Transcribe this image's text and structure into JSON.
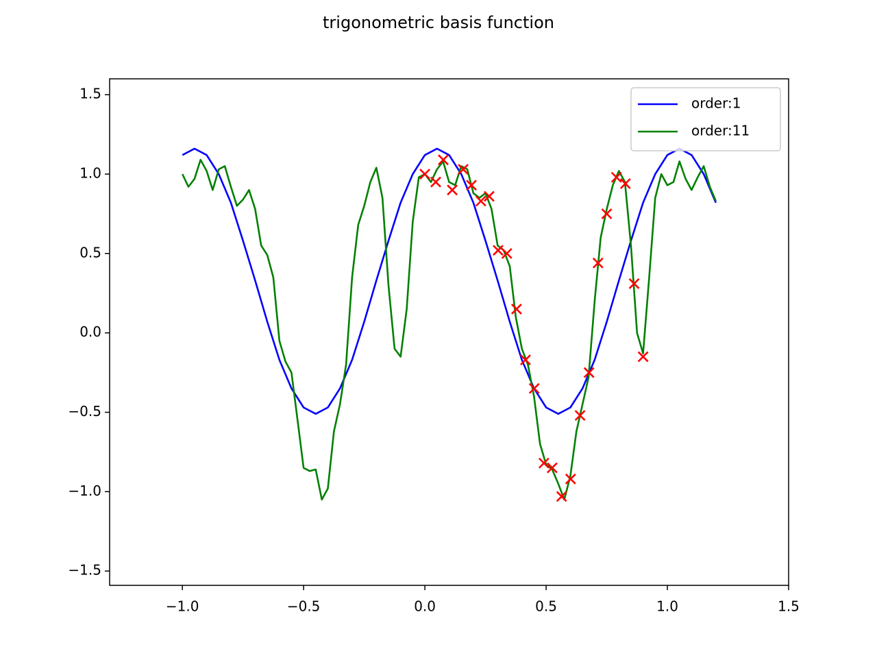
{
  "chart_data": {
    "type": "line",
    "title": "trigonometric basis function",
    "xlim": [
      -1.3,
      1.5
    ],
    "ylim": [
      -1.59,
      1.6
    ],
    "xticks": [
      {
        "value": -1,
        "label": "−1.0"
      },
      {
        "value": -0.5,
        "label": "−0.5"
      },
      {
        "value": 0,
        "label": "0.0"
      },
      0.5,
      {
        "value": 1,
        "label": "1.0"
      },
      1.5
    ],
    "yticks": [
      {
        "value": -1.5,
        "label": "−1.5"
      },
      {
        "value": -1,
        "label": "−1.0"
      },
      {
        "value": -0.5,
        "label": "−0.5"
      },
      {
        "value": 0,
        "label": "0.0"
      },
      0.5,
      {
        "value": 1,
        "label": "1.0"
      },
      1.5
    ],
    "grid": false,
    "legend": "upper-right",
    "series": [
      {
        "name": "order:1",
        "color": "#0000ff",
        "x": [
          -1.0,
          -0.95,
          -0.9,
          -0.85,
          -0.8,
          -0.75,
          -0.7,
          -0.65,
          -0.6,
          -0.55,
          -0.5,
          -0.45,
          -0.4,
          -0.35,
          -0.3,
          -0.25,
          -0.2,
          -0.15,
          -0.1,
          -0.05,
          0.0,
          0.05,
          0.1,
          0.15,
          0.2,
          0.25,
          0.3,
          0.35,
          0.4,
          0.45,
          0.5,
          0.55,
          0.6,
          0.65,
          0.7,
          0.75,
          0.8,
          0.85,
          0.9,
          0.95,
          1.0,
          1.05,
          1.1,
          1.15,
          1.2
        ],
        "values": [
          1.12,
          1.16,
          1.12,
          1.0,
          0.82,
          0.58,
          0.33,
          0.07,
          -0.17,
          -0.35,
          -0.47,
          -0.51,
          -0.47,
          -0.35,
          -0.17,
          0.07,
          0.33,
          0.58,
          0.82,
          1.0,
          1.12,
          1.16,
          1.12,
          1.0,
          0.82,
          0.58,
          0.33,
          0.07,
          -0.17,
          -0.35,
          -0.47,
          -0.51,
          -0.47,
          -0.35,
          -0.17,
          0.07,
          0.33,
          0.58,
          0.82,
          1.0,
          1.12,
          1.16,
          1.12,
          1.0,
          0.82
        ]
      },
      {
        "name": "order:11",
        "color": "#008000",
        "x": [
          -1.0,
          -0.975,
          -0.95,
          -0.925,
          -0.9,
          -0.875,
          -0.85,
          -0.825,
          -0.8,
          -0.775,
          -0.75,
          -0.725,
          -0.7,
          -0.675,
          -0.65,
          -0.625,
          -0.6,
          -0.575,
          -0.55,
          -0.525,
          -0.5,
          -0.475,
          -0.45,
          -0.425,
          -0.4,
          -0.375,
          -0.35,
          -0.325,
          -0.3,
          -0.275,
          -0.25,
          -0.225,
          -0.2,
          -0.175,
          -0.15,
          -0.125,
          -0.1,
          -0.075,
          -0.05,
          -0.025,
          0.0,
          0.025,
          0.05,
          0.075,
          0.1,
          0.125,
          0.15,
          0.175,
          0.2,
          0.225,
          0.25,
          0.275,
          0.3,
          0.325,
          0.35,
          0.375,
          0.4,
          0.425,
          0.45,
          0.475,
          0.5,
          0.525,
          0.55,
          0.575,
          0.6,
          0.625,
          0.65,
          0.675,
          0.7,
          0.725,
          0.75,
          0.775,
          0.8,
          0.825,
          0.85,
          0.875,
          0.9,
          0.925,
          0.95,
          0.975,
          1.0,
          1.025,
          1.05,
          1.075,
          1.1,
          1.125,
          1.15,
          1.175,
          1.2
        ],
        "values": [
          1.0,
          0.92,
          0.97,
          1.09,
          1.02,
          0.9,
          1.03,
          1.05,
          0.92,
          0.8,
          0.84,
          0.9,
          0.78,
          0.55,
          0.49,
          0.35,
          -0.05,
          -0.18,
          -0.25,
          -0.55,
          -0.85,
          -0.87,
          -0.86,
          -1.05,
          -0.98,
          -0.62,
          -0.45,
          -0.2,
          0.35,
          0.68,
          0.8,
          0.95,
          1.04,
          0.85,
          0.3,
          -0.1,
          -0.15,
          0.15,
          0.7,
          0.98,
          1.0,
          0.95,
          1.03,
          1.08,
          0.95,
          0.93,
          1.05,
          1.03,
          0.88,
          0.85,
          0.88,
          0.78,
          0.55,
          0.52,
          0.42,
          0.1,
          -0.1,
          -0.2,
          -0.4,
          -0.7,
          -0.83,
          -0.86,
          -0.95,
          -1.05,
          -0.9,
          -0.62,
          -0.45,
          -0.28,
          0.2,
          0.6,
          0.78,
          0.93,
          1.02,
          0.95,
          0.55,
          0.0,
          -0.13,
          0.35,
          0.85,
          1.0,
          0.93,
          0.95,
          1.08,
          0.97,
          0.9,
          0.98,
          1.05,
          0.92,
          0.83
        ]
      }
    ],
    "scatter": {
      "color": "#ff0000",
      "x": [
        0.0,
        0.045,
        0.076,
        0.113,
        0.158,
        0.192,
        0.231,
        0.265,
        0.302,
        0.338,
        0.378,
        0.415,
        0.451,
        0.491,
        0.525,
        0.564,
        0.601,
        0.64,
        0.677,
        0.714,
        0.75,
        0.79,
        0.827,
        0.863,
        0.9
      ],
      "values": [
        1.0,
        0.95,
        1.09,
        0.9,
        1.03,
        0.93,
        0.83,
        0.86,
        0.52,
        0.5,
        0.15,
        -0.17,
        -0.35,
        -0.82,
        -0.85,
        -1.03,
        -0.92,
        -0.52,
        -0.25,
        0.44,
        0.75,
        0.98,
        0.94,
        0.31,
        -0.15
      ]
    }
  }
}
